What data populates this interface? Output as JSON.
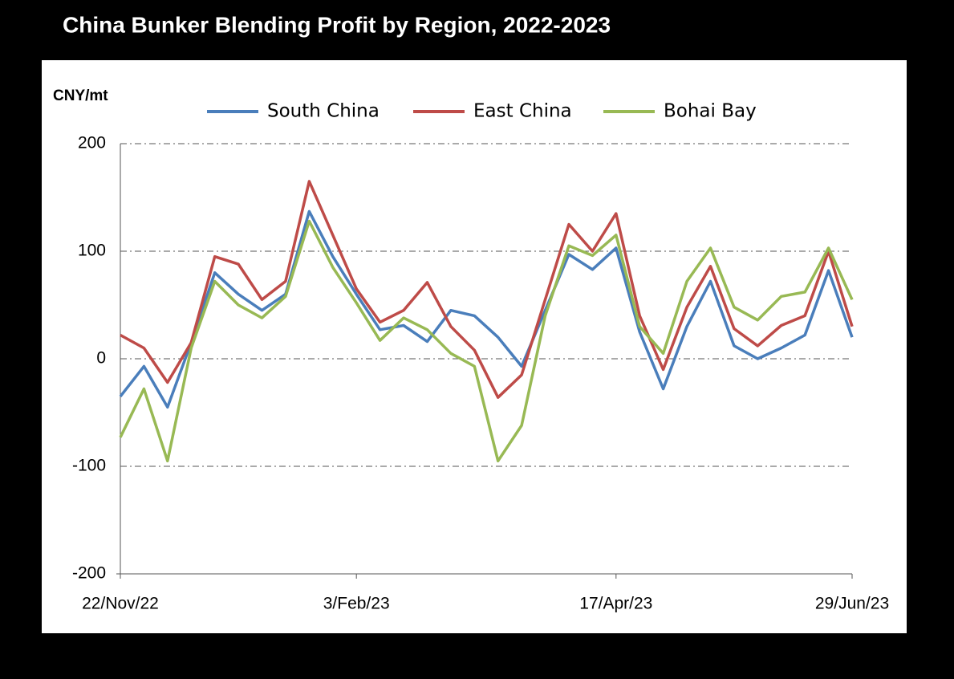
{
  "chart_data": {
    "type": "line",
    "title": "China Bunker Blending Profit by Region, 2022-2023",
    "y_label": "CNY/mt",
    "categories": [
      "22/Nov/22",
      null,
      null,
      null,
      null,
      null,
      null,
      null,
      null,
      null,
      "3/Feb/23",
      null,
      null,
      null,
      null,
      null,
      null,
      null,
      null,
      null,
      null,
      "17/Apr/23",
      null,
      null,
      null,
      null,
      null,
      null,
      null,
      null,
      null,
      "29/Jun/23"
    ],
    "series": [
      {
        "name": "South China",
        "color": "#4a7ebb",
        "values": [
          -35,
          -7,
          -45,
          15,
          80,
          60,
          45,
          60,
          137,
          95,
          60,
          27,
          31,
          16,
          45,
          40,
          20,
          -7,
          45,
          97,
          83,
          103,
          25,
          -28,
          30,
          72,
          12,
          0,
          10,
          22,
          82,
          20
        ]
      },
      {
        "name": "East China",
        "color": "#be4b48",
        "values": [
          22,
          10,
          -22,
          15,
          95,
          88,
          55,
          72,
          165,
          115,
          65,
          34,
          45,
          71,
          30,
          8,
          -36,
          -15,
          55,
          125,
          100,
          135,
          40,
          -10,
          48,
          86,
          28,
          12,
          31,
          40,
          100,
          30
        ]
      },
      {
        "name": "Bohai Bay",
        "color": "#98b954",
        "values": [
          -73,
          -28,
          -95,
          10,
          72,
          50,
          38,
          58,
          128,
          85,
          52,
          17,
          38,
          27,
          5,
          -7,
          -95,
          -62,
          40,
          105,
          96,
          115,
          30,
          5,
          72,
          103,
          48,
          36,
          58,
          62,
          103,
          55
        ]
      }
    ],
    "ylim": [
      -200,
      200
    ],
    "yticks": [
      -200,
      -100,
      0,
      100,
      200
    ],
    "grid": true
  }
}
